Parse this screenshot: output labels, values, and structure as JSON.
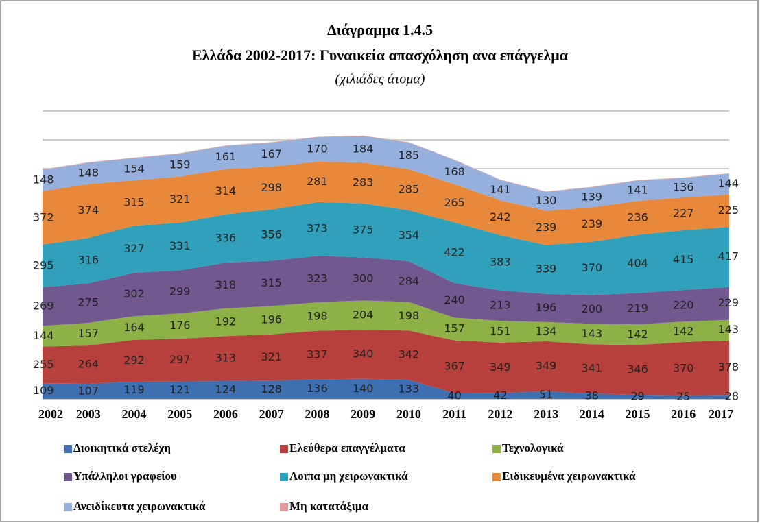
{
  "chart_data": {
    "type": "stacked_area",
    "title": "Διάγραμμα 1.4.5",
    "subtitle": "Ελλάδα 2002-2017: Γυναικεία απασχόληση ανα επάγγελμα",
    "unit_label": "(χιλιάδες άτομα)",
    "categories": [
      "2002",
      "2003",
      "2004",
      "2005",
      "2006",
      "2007",
      "2008",
      "2009",
      "2010",
      "2011",
      "2012",
      "2013",
      "2014",
      "2015",
      "2016",
      "2017"
    ],
    "ylim": [
      0,
      2000
    ],
    "yticks": [
      0,
      200,
      400,
      600,
      800,
      1000,
      1200,
      1400,
      1600,
      1800,
      2000
    ],
    "grid": true,
    "series": [
      {
        "name": "Διοικητικά στελέχη",
        "color": "#3e6fb0",
        "values": [
          109,
          107,
          119,
          121,
          124,
          128,
          136,
          140,
          133,
          40,
          42,
          51,
          38,
          29,
          25,
          28
        ]
      },
      {
        "name": "Ελεύθερα επαγγέλματα",
        "color": "#b8403c",
        "values": [
          255,
          264,
          292,
          297,
          313,
          321,
          337,
          340,
          342,
          367,
          349,
          349,
          341,
          346,
          370,
          378
        ]
      },
      {
        "name": "Τεχνολογικά",
        "color": "#8db146",
        "values": [
          144,
          157,
          164,
          176,
          192,
          196,
          198,
          204,
          198,
          157,
          151,
          134,
          143,
          142,
          142,
          143
        ]
      },
      {
        "name": "Υπάλληλοι γραφείου",
        "color": "#71588f",
        "values": [
          269,
          275,
          302,
          299,
          318,
          315,
          323,
          300,
          284,
          240,
          213,
          196,
          200,
          219,
          220,
          229
        ]
      },
      {
        "name": "Λοιπα μη χειρωνακτικά",
        "color": "#31a0bb",
        "values": [
          295,
          316,
          327,
          331,
          336,
          356,
          373,
          375,
          354,
          422,
          383,
          339,
          370,
          404,
          415,
          417
        ]
      },
      {
        "name": "Ειδικευμένα χειρωνακτικά",
        "color": "#e8883a",
        "values": [
          372,
          374,
          315,
          321,
          314,
          298,
          281,
          283,
          285,
          265,
          242,
          239,
          239,
          236,
          227,
          225
        ]
      },
      {
        "name": "Ανειδίκευτα χειρωνακτικά",
        "color": "#95b0dc",
        "values": [
          148,
          148,
          154,
          159,
          161,
          167,
          170,
          184,
          185,
          168,
          141,
          130,
          139,
          141,
          136,
          144
        ]
      },
      {
        "name": "Μη κατατάξιμα",
        "color": "#e09a9a",
        "values": [
          3,
          3,
          3,
          3,
          3,
          3,
          3,
          3,
          3,
          3,
          3,
          3,
          3,
          3,
          3,
          3
        ]
      }
    ]
  }
}
